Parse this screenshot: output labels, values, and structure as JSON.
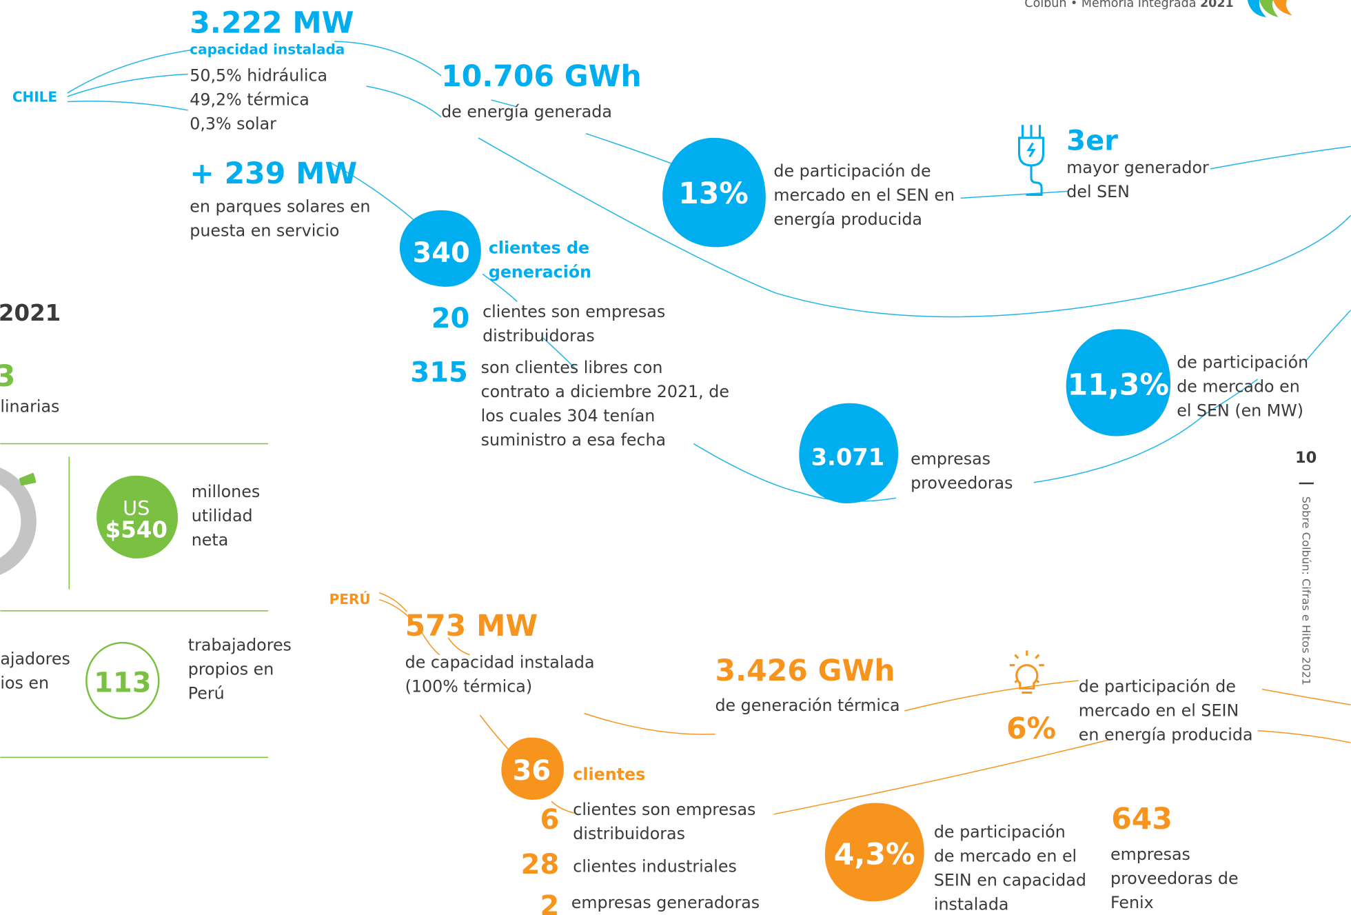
{
  "header": {
    "brand": "Colbún • Memoria Integrada",
    "year": "2021"
  },
  "page_number": "10",
  "side_label": "Sobre Colbún: Cifras e Hitos 2021",
  "chile": {
    "label": "CHILE",
    "capacity": {
      "value": "3.222 MW",
      "caption": "capacidad instalada",
      "lines": [
        "50,5% hidráulica",
        "49,2% térmica",
        "0,3% solar"
      ]
    },
    "solar": {
      "value": "+ 239 MW",
      "lines": [
        "en parques solares en",
        "puesta en servicio"
      ]
    },
    "energy": {
      "value": "10.706 GWh",
      "caption": "de energía generada"
    },
    "market_share_energy": {
      "value": "13%",
      "lines": [
        "de participación de",
        "mercado en el SEN en",
        "energía producida"
      ]
    },
    "rank": {
      "value": "3er",
      "lines": [
        "mayor generador",
        "del SEN"
      ]
    },
    "clients": {
      "value": "340",
      "lines": [
        "clientes de",
        "generación"
      ]
    },
    "distributors": {
      "value": "20",
      "lines": [
        "clientes son empresas",
        "distribuidoras"
      ]
    },
    "free_clients": {
      "value": "315",
      "lines": [
        "son clientes libres con",
        "contrato a diciembre 2021, de",
        "los cuales 304 tenían",
        "suministro a esa fecha"
      ]
    },
    "suppliers": {
      "value": "3.071",
      "lines": [
        "empresas",
        "proveedoras"
      ]
    },
    "market_share_mw": {
      "value": "11,3%",
      "lines": [
        "de participación",
        "de mercado en",
        "el SEN (en MW)"
      ]
    }
  },
  "left_panel": {
    "year_fragment": "2021",
    "green_fragment": "3",
    "line_fragment": "linarias",
    "net_income": {
      "currency": "US",
      "value": "$540",
      "lines": [
        "millones",
        "utilidad",
        "neta"
      ]
    },
    "workers_fragment": [
      "ajadores",
      "ios en"
    ],
    "workers": {
      "value": "113",
      "lines": [
        "trabajadores",
        "propios en",
        "Perú"
      ]
    }
  },
  "peru": {
    "label": "PERÚ",
    "capacity": {
      "value": "573 MW",
      "lines": [
        "de capacidad instalada",
        "(100% térmica)"
      ]
    },
    "generation": {
      "value": "3.426 GWh",
      "caption": "de generación térmica"
    },
    "market_share_energy": {
      "value": "6%",
      "lines": [
        "de participación de",
        "mercado en el SEIN",
        "en energía producida"
      ]
    },
    "clients": {
      "value": "36",
      "caption": "clientes"
    },
    "distributors": {
      "value": "6",
      "lines": [
        "clientes son empresas",
        "distribuidoras"
      ]
    },
    "industrial": {
      "value": "28",
      "caption": "clientes industriales"
    },
    "generators": {
      "value": "2",
      "caption": "empresas generadoras"
    },
    "market_share_capacity": {
      "value": "4,3%",
      "lines": [
        "de participación",
        "de mercado en el",
        "SEIN en capacidad",
        "instalada"
      ]
    },
    "suppliers": {
      "value": "643",
      "lines": [
        "empresas",
        "proveedoras de",
        "Fenix"
      ]
    }
  }
}
